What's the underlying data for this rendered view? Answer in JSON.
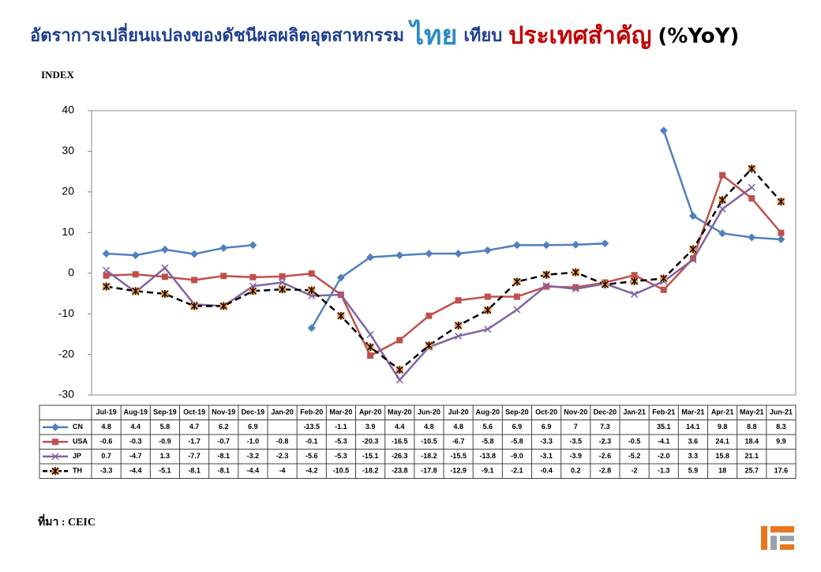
{
  "chart_data": {
    "type": "line",
    "title_parts": [
      {
        "text": "อัตราการเปลี่ยนแปลงของดัชนีผลผลิตอุตสาหกรรม",
        "color": "#1f3f8f"
      },
      {
        "text": "ไทย",
        "color": "#2e8bc0"
      },
      {
        "text": "เทียบ",
        "color": "#1f3f8f"
      },
      {
        "text": "ประเทศสำคัญ",
        "color": "#c00000"
      },
      {
        "text": "(%YoY)",
        "color": "#000000"
      }
    ],
    "y_label": "INDEX",
    "source": "ที่มา : CEIC",
    "categories": [
      "Jul-19",
      "Aug-19",
      "Sep-19",
      "Oct-19",
      "Nov-19",
      "Dec-19",
      "Jan-20",
      "Feb-20",
      "Mar-20",
      "Apr-20",
      "May-20",
      "Jun-20",
      "Jul-20",
      "Aug-20",
      "Sep-20",
      "Oct-20",
      "Nov-20",
      "Dec-20",
      "Jan-21",
      "Feb-21",
      "Mar-21",
      "Apr-21",
      "May-21",
      "Jun-21"
    ],
    "ylim": [
      -30,
      40
    ],
    "yticks": [
      -30,
      -20,
      -10,
      0,
      10,
      20,
      30,
      40
    ],
    "grid": false,
    "series": [
      {
        "name": "CN",
        "color": "#4f81bd",
        "marker": "diamond",
        "dash": false,
        "values": [
          4.8,
          4.4,
          5.8,
          4.7,
          6.2,
          6.9,
          null,
          -13.5,
          -1.1,
          3.9,
          4.4,
          4.8,
          4.8,
          5.6,
          6.9,
          6.9,
          7,
          7.3,
          null,
          35.1,
          14.1,
          9.8,
          8.8,
          8.3
        ],
        "value_labels": [
          "4.8",
          "4.4",
          "5.8",
          "4.7",
          "6.2",
          "6.9",
          null,
          "-13.5",
          "-1.1",
          "3.9",
          "4.4",
          "4.8",
          "4.8",
          "5.6",
          "6.9",
          "6.9",
          "7",
          "7.3",
          null,
          "35.1",
          "14.1",
          "9.8",
          "8.8",
          "8.3"
        ]
      },
      {
        "name": "USA",
        "color": "#c0504d",
        "marker": "square",
        "dash": false,
        "values": [
          -0.6,
          -0.3,
          -0.9,
          -1.7,
          -0.7,
          -1.0,
          -0.8,
          -0.1,
          -5.3,
          -20.3,
          -16.5,
          -10.5,
          -6.7,
          -5.8,
          -5.8,
          -3.3,
          -3.5,
          -2.3,
          -0.5,
          -4.1,
          3.6,
          24.1,
          18.4,
          9.9
        ],
        "value_labels": [
          "-0.6",
          "-0.3",
          "-0.9",
          "-1.7",
          "-0.7",
          "-1.0",
          "-0.8",
          "-0.1",
          "-5.3",
          "-20.3",
          "-16.5",
          "-10.5",
          "-6.7",
          "-5.8",
          "-5.8",
          "-3.3",
          "-3.5",
          "-2.3",
          "-0.5",
          "-4.1",
          "3.6",
          "24.1",
          "18.4",
          "9.9"
        ]
      },
      {
        "name": "JP",
        "color": "#8064a2",
        "marker": "x",
        "dash": false,
        "values": [
          0.7,
          -4.7,
          1.3,
          -7.7,
          -8.1,
          -3.2,
          -2.3,
          -5.6,
          -5.3,
          -15.1,
          -26.3,
          -18.2,
          -15.5,
          -13.8,
          -9.0,
          -3.1,
          -3.9,
          -2.6,
          -5.2,
          -2.0,
          3.3,
          15.8,
          21.1,
          null
        ],
        "value_labels": [
          "0.7",
          "-4.7",
          "1.3",
          "-7.7",
          "-8.1",
          "-3.2",
          "-2.3",
          "-5.6",
          "-5.3",
          "-15.1",
          "-26.3",
          "-18.2",
          "-15.5",
          "-13.8",
          "-9.0",
          "-3.1",
          "-3.9",
          "-2.6",
          "-5.2",
          "-2.0",
          "3.3",
          "15.8",
          "21.1",
          null
        ]
      },
      {
        "name": "TH",
        "color": "#000000",
        "marker_fill": "#f79646",
        "marker": "star",
        "dash": true,
        "values": [
          -3.3,
          -4.4,
          -5.1,
          -8.1,
          -8.1,
          -4.4,
          -4,
          -4.2,
          -10.5,
          -18.2,
          -23.8,
          -17.8,
          -12.9,
          -9.1,
          -2.1,
          -0.4,
          0.2,
          -2.8,
          -2,
          -1.3,
          5.9,
          18,
          25.7,
          17.6
        ],
        "value_labels": [
          "-3.3",
          "-4.4",
          "-5.1",
          "-8.1",
          "-8.1",
          "-4.4",
          "-4",
          "-4.2",
          "-10.5",
          "-18.2",
          "-23.8",
          "-17.8",
          "-12.9",
          "-9.1",
          "-2.1",
          "-0.4",
          "0.2",
          "-2.8",
          "-2",
          "-1.3",
          "5.9",
          "18",
          "25.7",
          "17.6"
        ]
      }
    ]
  }
}
